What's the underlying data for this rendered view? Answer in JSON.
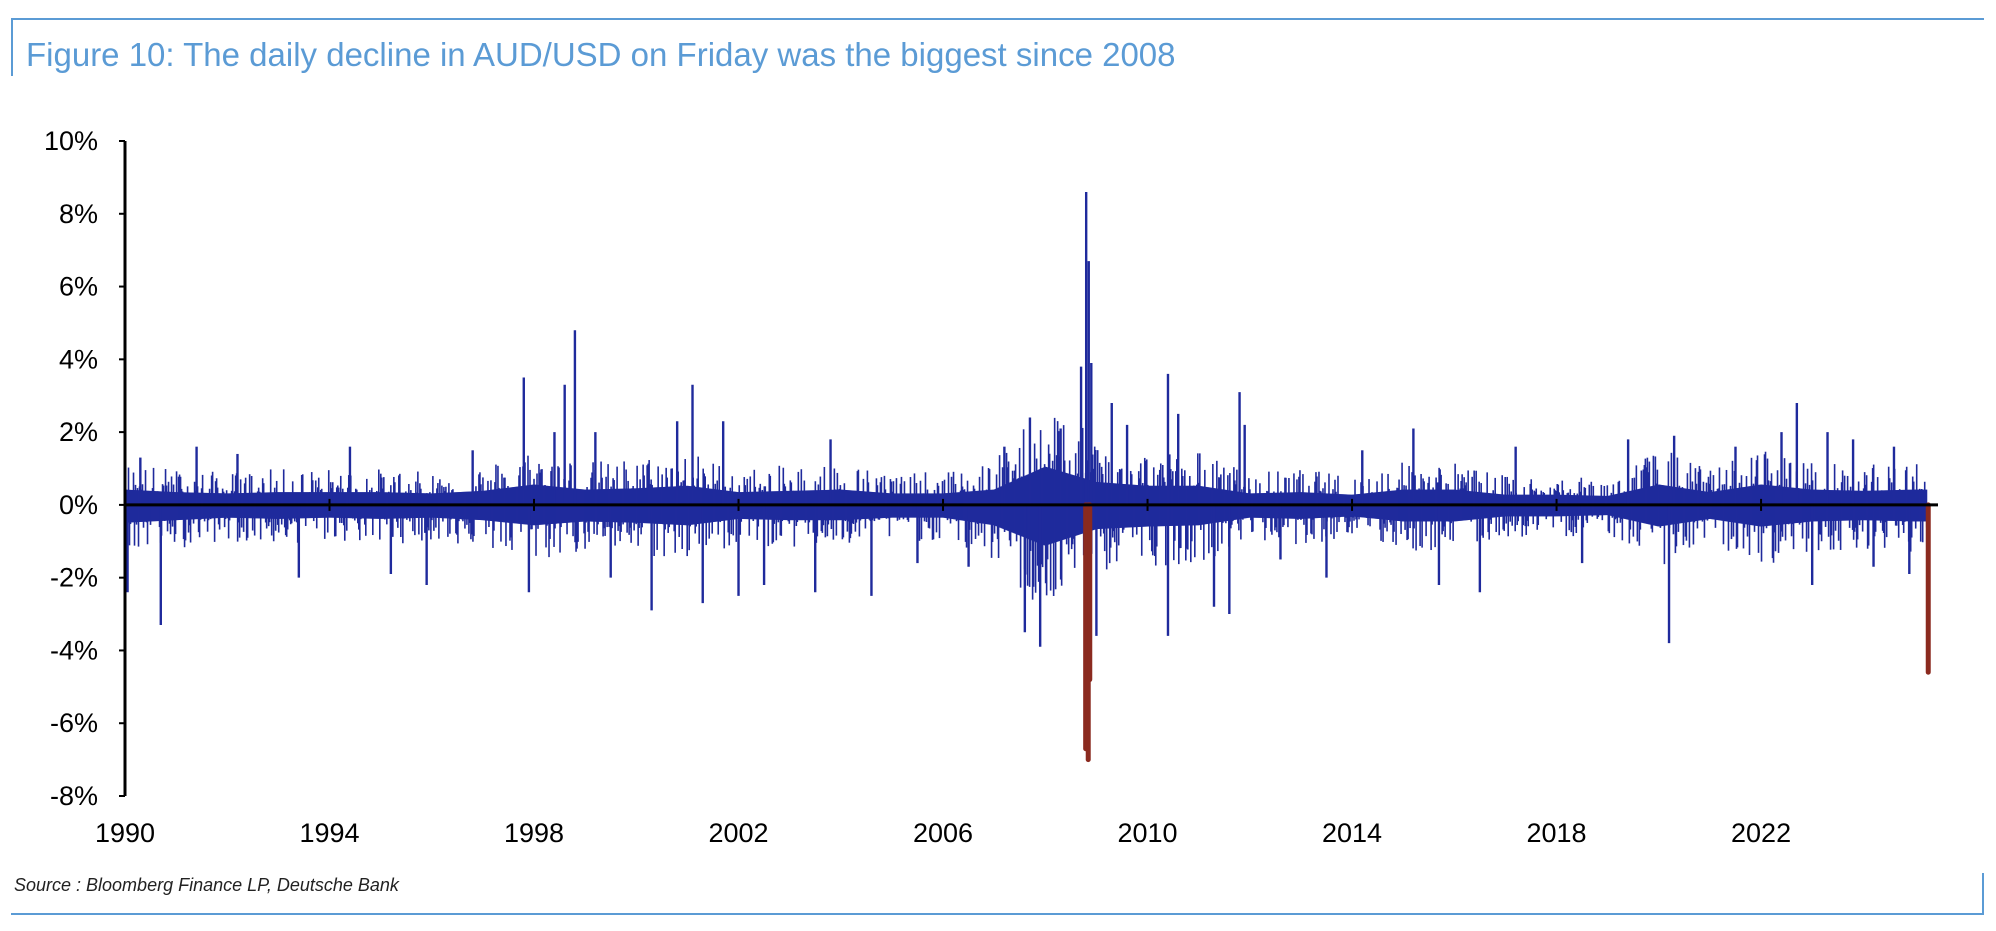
{
  "title": "Figure 10: The daily decline in AUD/USD on Friday was the biggest since 2008",
  "source": "Source : Bloomberg Finance LP, Deutsche Bank",
  "chart_data": {
    "type": "bar",
    "title": "Figure 10: The daily decline in AUD/USD on Friday was the biggest since 2008",
    "xlabel": "",
    "ylabel": "",
    "xlim": [
      1990,
      2025.5
    ],
    "ylim": [
      -8,
      10
    ],
    "x_ticks": [
      "1990",
      "1994",
      "1998",
      "2002",
      "2006",
      "2010",
      "2014",
      "2018",
      "2022"
    ],
    "y_ticks": [
      "10%",
      "8%",
      "6%",
      "4%",
      "2%",
      "0%",
      "-2%",
      "-4%",
      "-6%",
      "-8%"
    ],
    "grid": false,
    "legend": "none",
    "colors": {
      "series": "#1f2a9c",
      "highlight": "#8b2a1f",
      "axis": "#000000",
      "title": "#5b9bd5"
    },
    "series": [
      {
        "typical_band": [
          [
            1990,
            1.2,
            -1.4
          ],
          [
            1991,
            1.0,
            -1.2
          ],
          [
            1992,
            0.9,
            -1.0
          ],
          [
            1993,
            1.0,
            -1.1
          ],
          [
            1994,
            1.0,
            -1.0
          ],
          [
            1995,
            1.0,
            -1.1
          ],
          [
            1996,
            0.9,
            -1.0
          ],
          [
            1997,
            1.1,
            -1.2
          ],
          [
            1998,
            1.6,
            -1.6
          ],
          [
            1999,
            1.2,
            -1.3
          ],
          [
            2000,
            1.3,
            -1.4
          ],
          [
            2001,
            1.5,
            -1.6
          ],
          [
            2002,
            1.0,
            -1.1
          ],
          [
            2003,
            1.1,
            -1.2
          ],
          [
            2004,
            1.2,
            -1.2
          ],
          [
            2005,
            0.9,
            -1.0
          ],
          [
            2006,
            0.9,
            -1.0
          ],
          [
            2007,
            1.2,
            -1.6
          ],
          [
            2008,
            3.0,
            -3.2
          ],
          [
            2009,
            1.8,
            -1.9
          ],
          [
            2010,
            1.5,
            -1.7
          ],
          [
            2011,
            1.5,
            -1.6
          ],
          [
            2012,
            0.9,
            -1.0
          ],
          [
            2013,
            1.0,
            -1.1
          ],
          [
            2014,
            0.8,
            -0.9
          ],
          [
            2015,
            1.2,
            -1.3
          ],
          [
            2016,
            1.2,
            -1.3
          ],
          [
            2017,
            0.8,
            -0.9
          ],
          [
            2018,
            0.8,
            -0.9
          ],
          [
            2019,
            0.7,
            -0.8
          ],
          [
            2020,
            1.6,
            -1.7
          ],
          [
            2021,
            1.0,
            -1.1
          ],
          [
            2022,
            1.6,
            -1.7
          ],
          [
            2023,
            1.2,
            -1.3
          ],
          [
            2024,
            1.1,
            -1.2
          ],
          [
            2025,
            1.2,
            -1.3
          ]
        ],
        "spikes": [
          [
            1990.05,
            -2.4
          ],
          [
            1990.3,
            1.3
          ],
          [
            1990.7,
            -3.3
          ],
          [
            1991.4,
            1.6
          ],
          [
            1992.2,
            1.4
          ],
          [
            1993.4,
            -2.0
          ],
          [
            1994.4,
            1.6
          ],
          [
            1995.2,
            -1.9
          ],
          [
            1995.9,
            -2.2
          ],
          [
            1996.8,
            1.5
          ],
          [
            1997.8,
            3.5
          ],
          [
            1997.9,
            -2.4
          ],
          [
            1998.4,
            2.0
          ],
          [
            1998.6,
            3.3
          ],
          [
            1998.8,
            4.8
          ],
          [
            1999.2,
            2.0
          ],
          [
            1999.5,
            -2.0
          ],
          [
            2000.3,
            -2.9
          ],
          [
            2000.8,
            2.3
          ],
          [
            2001.1,
            3.3
          ],
          [
            2001.3,
            -2.7
          ],
          [
            2001.7,
            2.3
          ],
          [
            2002.0,
            -2.5
          ],
          [
            2002.5,
            -2.2
          ],
          [
            2003.5,
            -2.4
          ],
          [
            2003.8,
            1.8
          ],
          [
            2004.6,
            -2.5
          ],
          [
            2005.5,
            -1.6
          ],
          [
            2006.5,
            -1.7
          ],
          [
            2007.2,
            1.6
          ],
          [
            2007.6,
            -3.5
          ],
          [
            2007.7,
            2.4
          ],
          [
            2007.9,
            -3.9
          ],
          [
            2008.3,
            2.1
          ],
          [
            2008.7,
            3.8
          ],
          [
            2008.8,
            8.6
          ],
          [
            2008.85,
            6.7
          ],
          [
            2008.9,
            3.9
          ],
          [
            2009.0,
            -3.6
          ],
          [
            2009.3,
            2.8
          ],
          [
            2009.6,
            2.2
          ],
          [
            2010.4,
            3.6
          ],
          [
            2010.4,
            -3.6
          ],
          [
            2010.6,
            2.5
          ],
          [
            2011.3,
            -2.8
          ],
          [
            2011.6,
            -3.0
          ],
          [
            2011.8,
            3.1
          ],
          [
            2011.9,
            2.2
          ],
          [
            2012.6,
            -1.5
          ],
          [
            2013.5,
            -2.0
          ],
          [
            2014.2,
            1.5
          ],
          [
            2015.2,
            2.1
          ],
          [
            2015.7,
            -2.2
          ],
          [
            2016.5,
            -2.4
          ],
          [
            2017.2,
            1.6
          ],
          [
            2018.5,
            -1.6
          ],
          [
            2019.4,
            1.8
          ],
          [
            2020.2,
            -3.8
          ],
          [
            2020.3,
            1.9
          ],
          [
            2021.5,
            1.6
          ],
          [
            2022.4,
            2.0
          ],
          [
            2022.7,
            2.8
          ],
          [
            2023.0,
            -2.2
          ],
          [
            2023.3,
            2.0
          ],
          [
            2023.8,
            1.8
          ],
          [
            2024.2,
            -1.7
          ],
          [
            2024.6,
            1.6
          ],
          [
            2024.9,
            -1.9
          ]
        ]
      },
      {
        "highlight_bars": [
          [
            2008.79,
            -6.7
          ],
          [
            2008.84,
            -7.0
          ],
          [
            2008.87,
            -4.8
          ],
          [
            2025.27,
            -4.6
          ]
        ]
      }
    ]
  }
}
